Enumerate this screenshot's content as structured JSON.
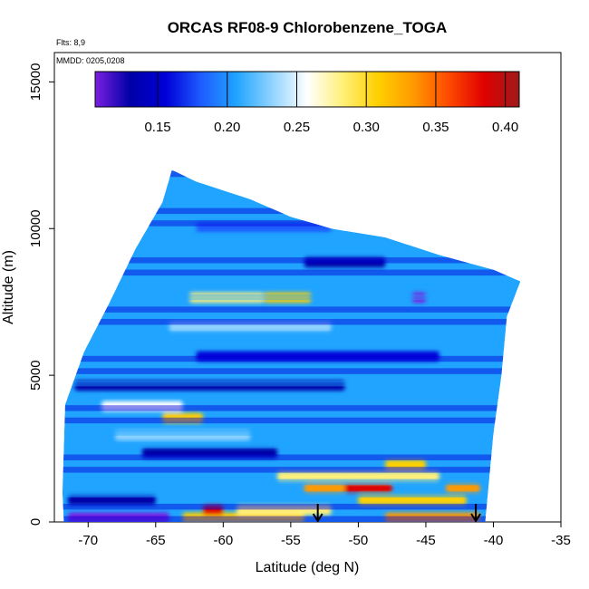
{
  "chart_data": {
    "type": "heatmap",
    "title": "ORCAS RF08-9 Chlorobenzene_TOGA",
    "xlabel": "Latitude (deg N)",
    "ylabel": "Altitude (m)",
    "xlim": [
      -72.5,
      -35
    ],
    "ylim": [
      0,
      16000
    ],
    "x_ticks": [
      -70,
      -65,
      -60,
      -55,
      -50,
      -45,
      -40,
      -35
    ],
    "x_tick_labels": [
      "-70",
      "-65",
      "-60",
      "-55",
      "-50",
      "-45",
      "-40",
      "-35"
    ],
    "y_ticks": [
      0,
      5000,
      10000,
      15000
    ],
    "y_tick_labels": [
      "0",
      "5000",
      "10000",
      "15000"
    ],
    "annotations": {
      "flights": "Flts: 8,9",
      "dates": "MMDD: 0205,0208"
    },
    "colorbar": {
      "range": [
        0.105,
        0.41
      ],
      "ticks": [
        0.15,
        0.2,
        0.25,
        0.3,
        0.35,
        0.4
      ],
      "tick_labels": [
        "0.15",
        "0.20",
        "0.25",
        "0.30",
        "0.35",
        "0.40"
      ],
      "colors": [
        "#7a1fe0",
        "#0000a8",
        "#0000d8",
        "#1e5cff",
        "#20a4ff",
        "#8fd3ff",
        "#ffffff",
        "#fff07a",
        "#ffd000",
        "#ff9a00",
        "#ff4a00",
        "#e00000",
        "#9e1a1a"
      ]
    },
    "envelope_top": [
      [
        -71.7,
        4000
      ],
      [
        -70.3,
        5800
      ],
      [
        -68.5,
        7400
      ],
      [
        -66.5,
        9300
      ],
      [
        -64.5,
        10900
      ],
      [
        -63.8,
        12000
      ],
      [
        -62.0,
        11600
      ],
      [
        -58.0,
        11000
      ],
      [
        -55.0,
        10400
      ],
      [
        -52.0,
        10000
      ],
      [
        -48.0,
        9700
      ],
      [
        -44.0,
        9100
      ],
      [
        -40.0,
        8600
      ],
      [
        -38.0,
        8200
      ]
    ],
    "envelope_bottom": [
      [
        -38.0,
        8200
      ],
      [
        -39.0,
        7000
      ],
      [
        -39.4,
        5000
      ],
      [
        -40.0,
        3000
      ],
      [
        -40.4,
        1000
      ],
      [
        -40.6,
        0
      ],
      [
        -71.8,
        0
      ],
      [
        -71.9,
        1000
      ]
    ],
    "bands": [
      {
        "alt": 100,
        "color": "#7a1fe0",
        "from": -71.5,
        "to": -64,
        "value": 0.11
      },
      {
        "alt": 100,
        "color": "#ffd000",
        "from": -63,
        "to": -54,
        "value": 0.3
      },
      {
        "alt": 100,
        "color": "#ff9a00",
        "from": -48,
        "to": -41,
        "value": 0.33
      },
      {
        "alt": 350,
        "color": "#e00000",
        "from": -61.5,
        "to": -60,
        "value": 0.37
      },
      {
        "alt": 350,
        "color": "#fff07a",
        "from": -59,
        "to": -52,
        "value": 0.27
      },
      {
        "alt": 700,
        "color": "#0000a8",
        "from": -71.5,
        "to": -65,
        "value": 0.13
      },
      {
        "alt": 700,
        "color": "#ffd000",
        "from": -50,
        "to": -42,
        "value": 0.3
      },
      {
        "alt": 1100,
        "color": "#e00000",
        "from": -51,
        "to": -47.5,
        "value": 0.38
      },
      {
        "alt": 1100,
        "color": "#ff9a00",
        "from": -54,
        "to": -51,
        "value": 0.33
      },
      {
        "alt": 1100,
        "color": "#ff9a00",
        "from": -43.5,
        "to": -41,
        "value": 0.33
      },
      {
        "alt": 1500,
        "color": "#fff07a",
        "from": -56,
        "to": -44,
        "value": 0.27
      },
      {
        "alt": 1900,
        "color": "#ffd000",
        "from": -48,
        "to": -45,
        "value": 0.29
      },
      {
        "alt": 2300,
        "color": "#0000a8",
        "from": -66,
        "to": -56,
        "value": 0.13
      },
      {
        "alt": 2900,
        "color": "#8fd3ff",
        "from": -68,
        "to": -58,
        "value": 0.22
      },
      {
        "alt": 3500,
        "color": "#ffd000",
        "from": -64.5,
        "to": -61.5,
        "value": 0.29
      },
      {
        "alt": 3900,
        "color": "#ffffff",
        "from": -69,
        "to": -63,
        "value": 0.25
      },
      {
        "alt": 4600,
        "color": "#0000a8",
        "from": -71,
        "to": -51,
        "value": 0.13
      },
      {
        "alt": 5600,
        "color": "#0000d8",
        "from": -62,
        "to": -44,
        "value": 0.15
      },
      {
        "alt": 6600,
        "color": "#8fd3ff",
        "from": -64,
        "to": -52,
        "value": 0.22
      },
      {
        "alt": 7600,
        "color": "#ffd000",
        "from": -57,
        "to": -53.5,
        "value": 0.3
      },
      {
        "alt": 7600,
        "color": "#fff07a",
        "from": -62.5,
        "to": -57,
        "value": 0.27
      },
      {
        "alt": 7600,
        "color": "#7a1fe0",
        "from": -46,
        "to": -45,
        "value": 0.11
      },
      {
        "alt": 8800,
        "color": "#0000a8",
        "from": -54,
        "to": -48,
        "value": 0.13
      },
      {
        "alt": 10000,
        "color": "#1e5cff",
        "from": -62,
        "to": -52,
        "value": 0.18
      }
    ],
    "arrows_at_latitude": [
      -53,
      -41.3
    ]
  }
}
